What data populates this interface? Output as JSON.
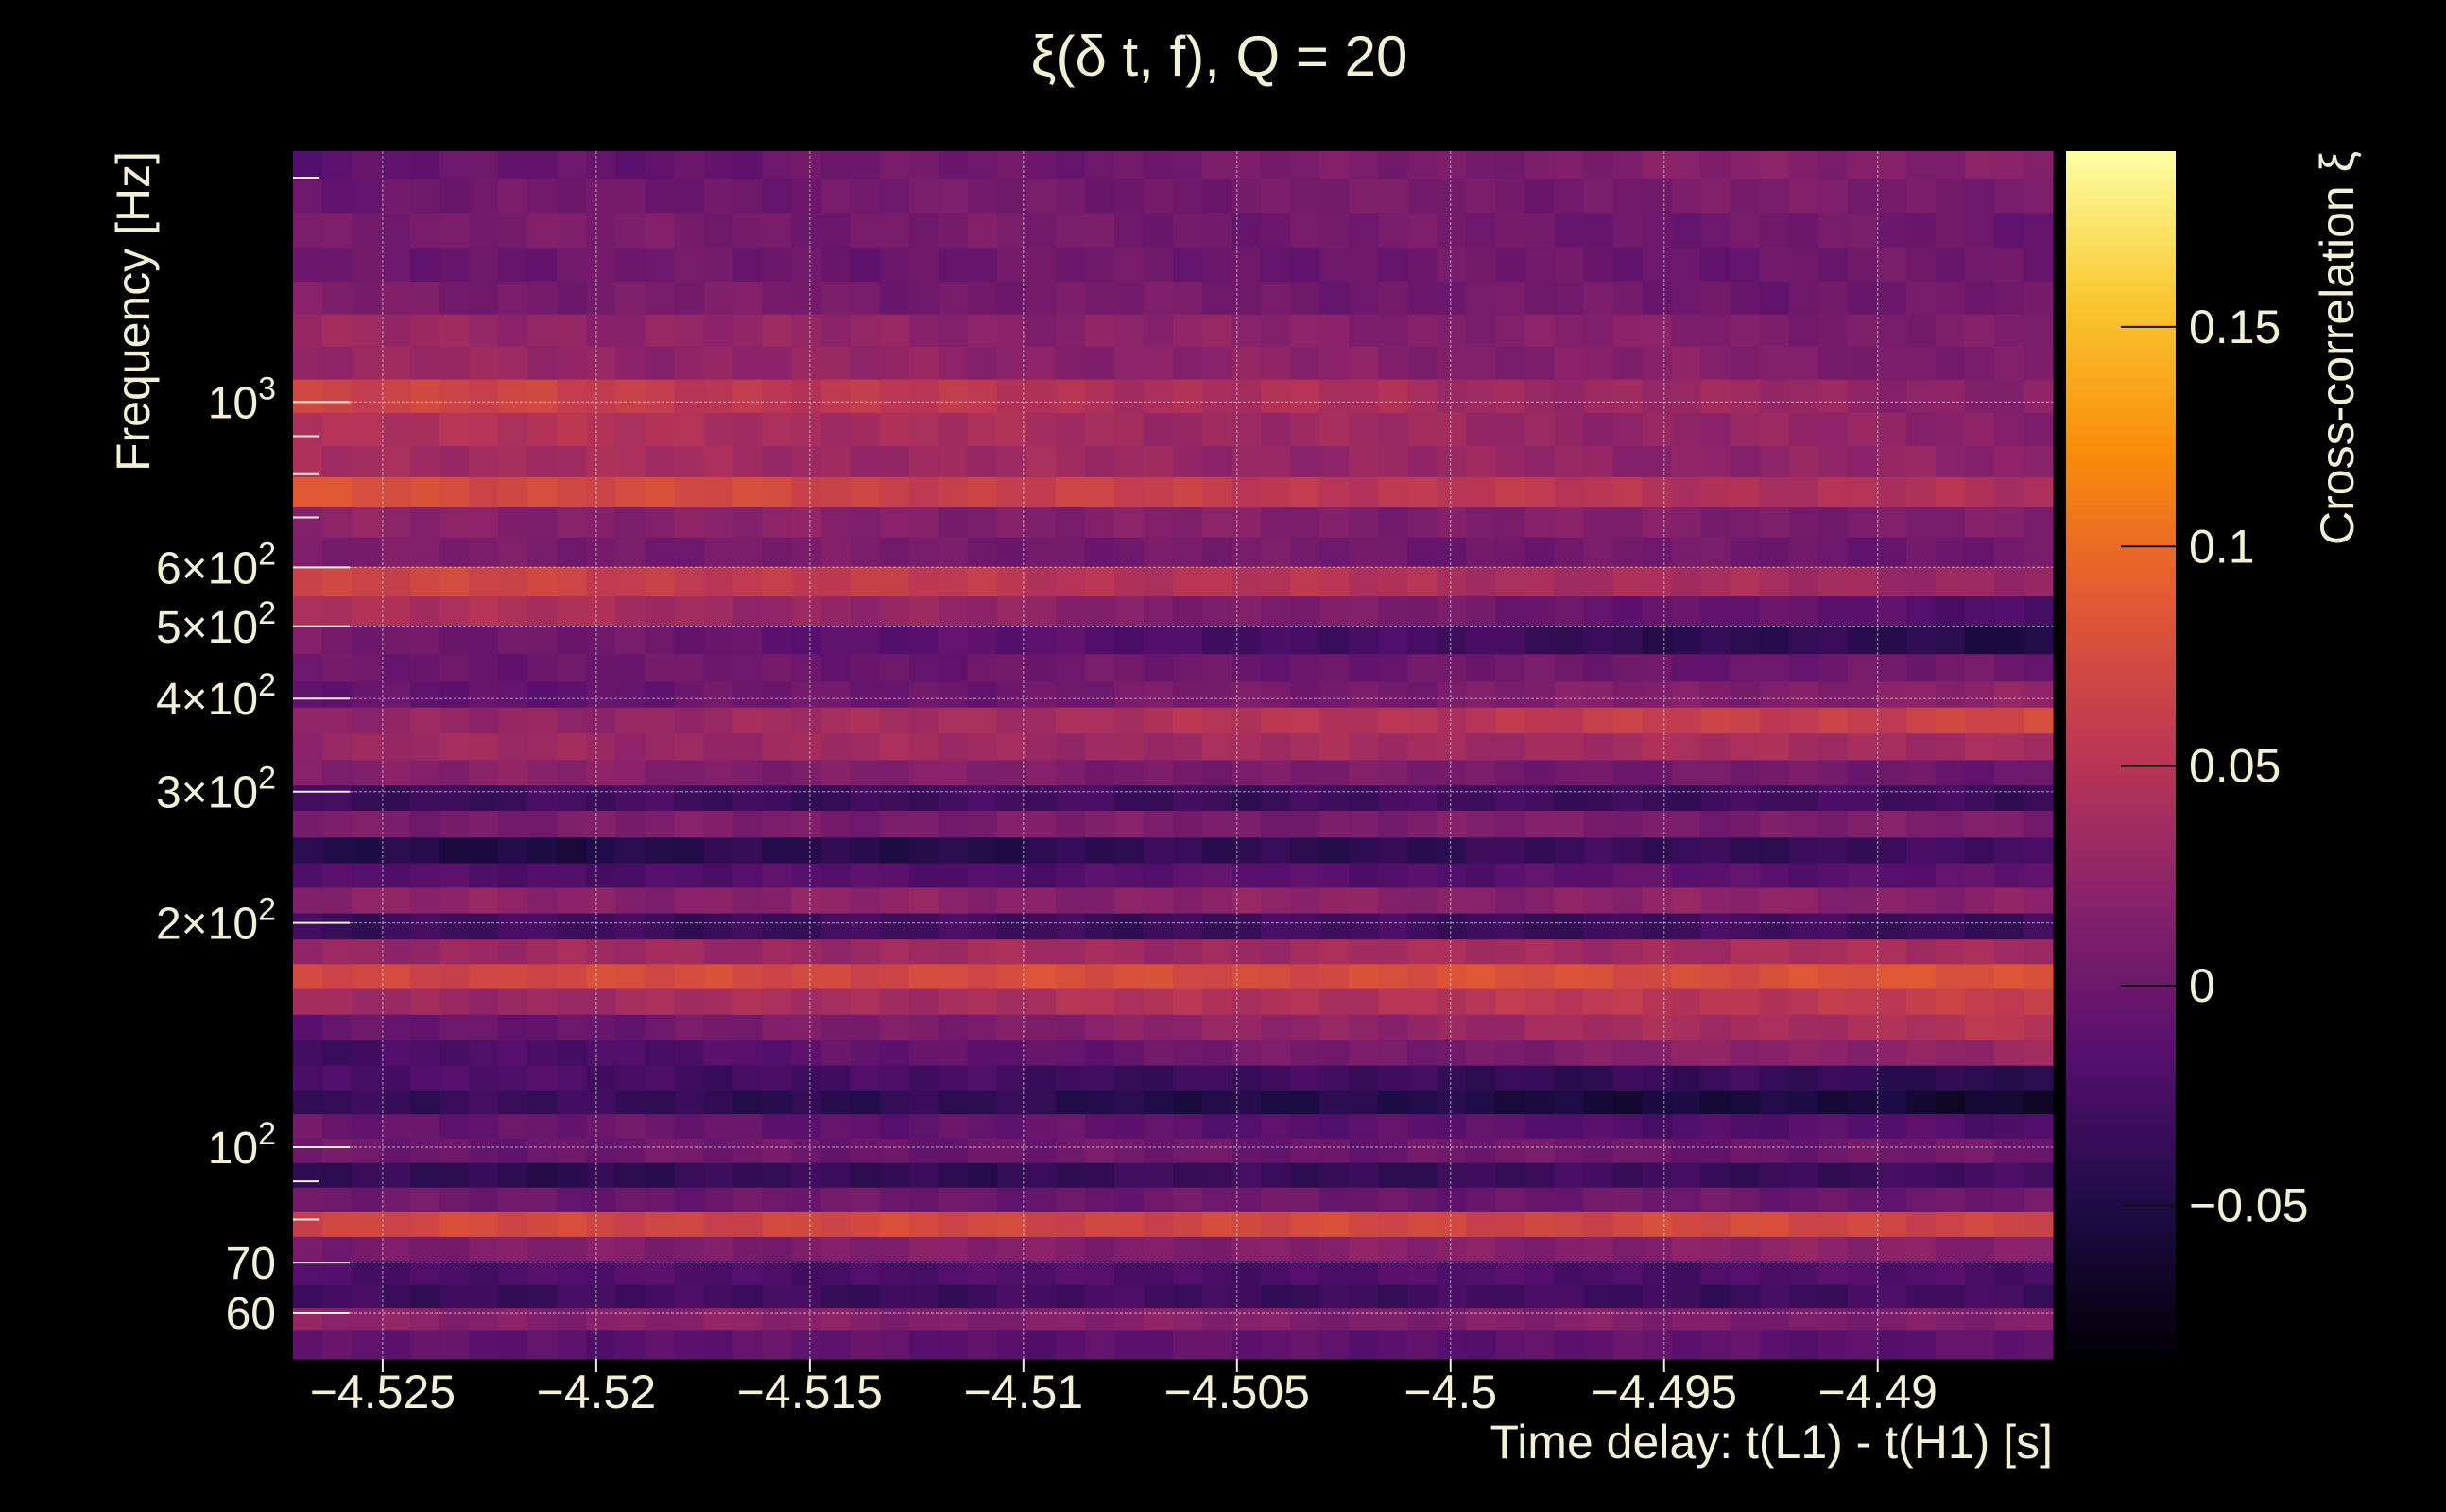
{
  "chart_data": {
    "type": "heatmap",
    "title": "ξ(δ t, f), Q = 20",
    "xlabel": "Time delay: t(L1) - t(H1) [s]",
    "ylabel": "Frequency [Hz]",
    "colorbar_label": "Cross-correlation ξ",
    "xlim": [
      -4.5271,
      -4.4859
    ],
    "ylim": [
      52,
      2170
    ],
    "yscale": "log",
    "grid": true,
    "x_ticks": [
      {
        "value": -4.525,
        "label": "−4.525"
      },
      {
        "value": -4.52,
        "label": "−4.52"
      },
      {
        "value": -4.515,
        "label": "−4.515"
      },
      {
        "value": -4.51,
        "label": "−4.51"
      },
      {
        "value": -4.505,
        "label": "−4.505"
      },
      {
        "value": -4.5,
        "label": "−4.5"
      },
      {
        "value": -4.495,
        "label": "−4.495"
      },
      {
        "value": -4.49,
        "label": "−4.49"
      }
    ],
    "y_ticks": [
      {
        "value": 1000,
        "base": "10",
        "exp": "3"
      },
      {
        "value": 600,
        "base": "6×10",
        "exp": "2"
      },
      {
        "value": 500,
        "base": "5×10",
        "exp": "2"
      },
      {
        "value": 400,
        "base": "4×10",
        "exp": "2"
      },
      {
        "value": 300,
        "base": "3×10",
        "exp": "2"
      },
      {
        "value": 200,
        "base": "2×10",
        "exp": "2"
      },
      {
        "value": 100,
        "base": "10",
        "exp": "2"
      },
      {
        "value": 70,
        "base": "70",
        "exp": ""
      },
      {
        "value": 60,
        "base": "60",
        "exp": ""
      }
    ],
    "colorbar": {
      "range": [
        -0.085,
        0.19
      ],
      "ticks": [
        {
          "value": 0.15,
          "label": "0.15"
        },
        {
          "value": 0.1,
          "label": "0.1"
        },
        {
          "value": 0.05,
          "label": "0.05"
        },
        {
          "value": 0,
          "label": "0"
        },
        {
          "value": -0.05,
          "label": "−0.05"
        }
      ],
      "colormap": "inferno"
    },
    "band_values": [
      {
        "f": 2100,
        "start": -0.01,
        "end": 0.02
      },
      {
        "f": 1900,
        "start": 0.0,
        "end": 0.01
      },
      {
        "f": 1700,
        "start": 0.01,
        "end": 0.0
      },
      {
        "f": 1530,
        "start": 0.0,
        "end": 0.0
      },
      {
        "f": 1380,
        "start": 0.01,
        "end": 0.0
      },
      {
        "f": 1250,
        "start": 0.03,
        "end": 0.01
      },
      {
        "f": 1130,
        "start": 0.03,
        "end": 0.01
      },
      {
        "f": 1020,
        "start": 0.07,
        "end": 0.02
      },
      {
        "f": 920,
        "start": 0.05,
        "end": 0.02
      },
      {
        "f": 830,
        "start": 0.04,
        "end": 0.02
      },
      {
        "f": 760,
        "start": 0.08,
        "end": 0.04
      },
      {
        "f": 690,
        "start": 0.02,
        "end": 0.01
      },
      {
        "f": 630,
        "start": 0.01,
        "end": 0.0
      },
      {
        "f": 575,
        "start": 0.07,
        "end": 0.03
      },
      {
        "f": 525,
        "start": 0.05,
        "end": -0.02
      },
      {
        "f": 480,
        "start": 0.01,
        "end": -0.05
      },
      {
        "f": 440,
        "start": 0.0,
        "end": 0.0
      },
      {
        "f": 405,
        "start": -0.01,
        "end": 0.02
      },
      {
        "f": 375,
        "start": 0.02,
        "end": 0.07
      },
      {
        "f": 345,
        "start": 0.03,
        "end": 0.04
      },
      {
        "f": 318,
        "start": 0.02,
        "end": 0.0
      },
      {
        "f": 295,
        "start": -0.03,
        "end": -0.03
      },
      {
        "f": 272,
        "start": 0.01,
        "end": 0.01
      },
      {
        "f": 250,
        "start": -0.05,
        "end": -0.03
      },
      {
        "f": 232,
        "start": -0.02,
        "end": -0.01
      },
      {
        "f": 215,
        "start": 0.02,
        "end": 0.02
      },
      {
        "f": 198,
        "start": -0.03,
        "end": -0.03
      },
      {
        "f": 183,
        "start": 0.03,
        "end": 0.04
      },
      {
        "f": 170,
        "start": 0.07,
        "end": 0.08
      },
      {
        "f": 157,
        "start": 0.03,
        "end": 0.06
      },
      {
        "f": 145,
        "start": -0.01,
        "end": 0.05
      },
      {
        "f": 134,
        "start": -0.03,
        "end": 0.03
      },
      {
        "f": 124,
        "start": -0.02,
        "end": -0.04
      },
      {
        "f": 115,
        "start": -0.03,
        "end": -0.06
      },
      {
        "f": 107,
        "start": 0.0,
        "end": -0.02
      },
      {
        "f": 99,
        "start": 0.0,
        "end": 0.0
      },
      {
        "f": 92,
        "start": -0.04,
        "end": -0.03
      },
      {
        "f": 85,
        "start": 0.0,
        "end": 0.0
      },
      {
        "f": 79,
        "start": 0.07,
        "end": 0.07
      },
      {
        "f": 73,
        "start": 0.01,
        "end": 0.02
      },
      {
        "f": 68,
        "start": -0.02,
        "end": -0.02
      },
      {
        "f": 63,
        "start": -0.03,
        "end": -0.03
      },
      {
        "f": 59,
        "start": 0.02,
        "end": 0.01
      },
      {
        "f": 55,
        "start": -0.01,
        "end": -0.01
      }
    ]
  }
}
